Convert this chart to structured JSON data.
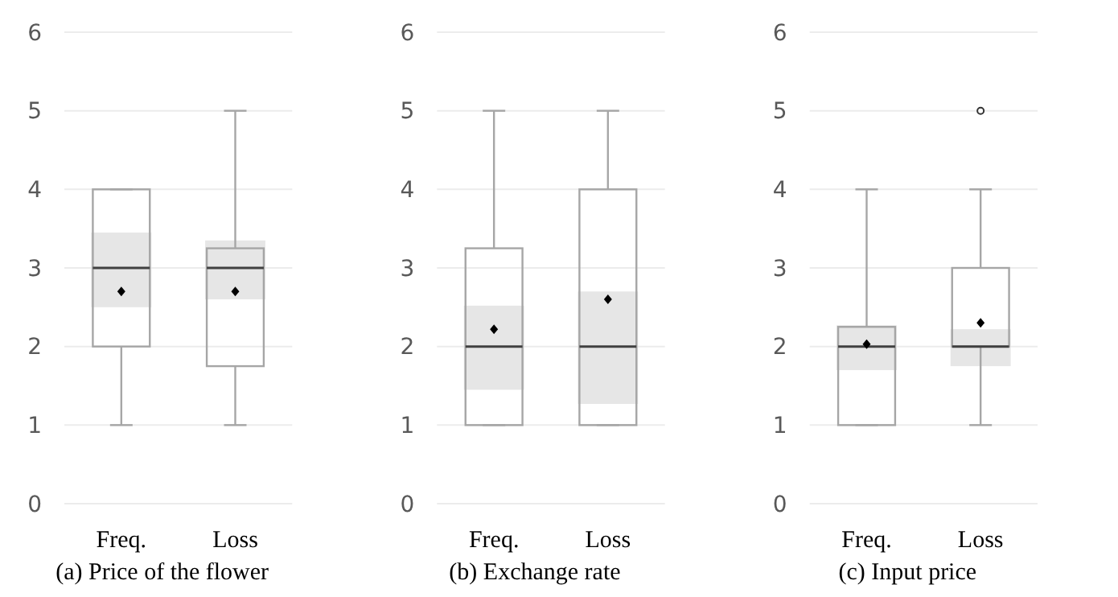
{
  "chart_data": [
    {
      "type": "box",
      "title": "(a) Price of the flower",
      "categories": [
        "Freq.",
        "Loss"
      ],
      "ylim": [
        0,
        6
      ],
      "yticks": [
        0,
        1,
        2,
        3,
        4,
        5,
        6
      ],
      "grid": "y",
      "series": [
        {
          "type": "bar",
          "color": "#e6e6e6",
          "base": [
            2.5,
            2.6
          ],
          "values": [
            0.95,
            0.75
          ]
        },
        {
          "type": "box",
          "color": "#a6a6a6",
          "boxes": [
            {
              "low": 1,
              "q1": 2,
              "median": 3,
              "q3": 4,
              "high": 4,
              "mean": 2.7
            },
            {
              "low": 1,
              "q1": 1.75,
              "median": 3,
              "q3": 3.25,
              "high": 5,
              "mean": 2.7
            }
          ]
        }
      ]
    },
    {
      "type": "box",
      "title": "(b) Exchange rate",
      "categories": [
        "Freq.",
        "Loss"
      ],
      "ylim": [
        0,
        6
      ],
      "yticks": [
        0,
        1,
        2,
        3,
        4,
        5,
        6
      ],
      "grid": "y",
      "series": [
        {
          "type": "bar",
          "color": "#e6e6e6",
          "base": [
            1.45,
            1.27
          ],
          "values": [
            1.07,
            1.43
          ]
        },
        {
          "type": "box",
          "color": "#a6a6a6",
          "boxes": [
            {
              "low": 1,
              "q1": 1,
              "median": 2,
              "q3": 3.25,
              "high": 5,
              "mean": 2.22
            },
            {
              "low": 1,
              "q1": 1,
              "median": 2,
              "q3": 4,
              "high": 5,
              "mean": 2.6
            }
          ]
        }
      ]
    },
    {
      "type": "box",
      "title": "(c) Input price",
      "categories": [
        "Freq.",
        "Loss"
      ],
      "ylim": [
        0,
        6
      ],
      "yticks": [
        0,
        1,
        2,
        3,
        4,
        5,
        6
      ],
      "grid": "y",
      "series": [
        {
          "type": "bar",
          "color": "#e6e6e6",
          "base": [
            1.7,
            1.75
          ],
          "values": [
            0.57,
            0.47
          ]
        },
        {
          "type": "box",
          "color": "#a6a6a6",
          "boxes": [
            {
              "low": 1,
              "q1": 1,
              "median": 2,
              "q3": 2.25,
              "high": 4,
              "mean": 2.03
            },
            {
              "low": 1,
              "q1": 2,
              "median": 2,
              "q3": 3,
              "high": 4,
              "mean": 2.3,
              "outliers": [
                5
              ]
            }
          ]
        }
      ]
    }
  ]
}
